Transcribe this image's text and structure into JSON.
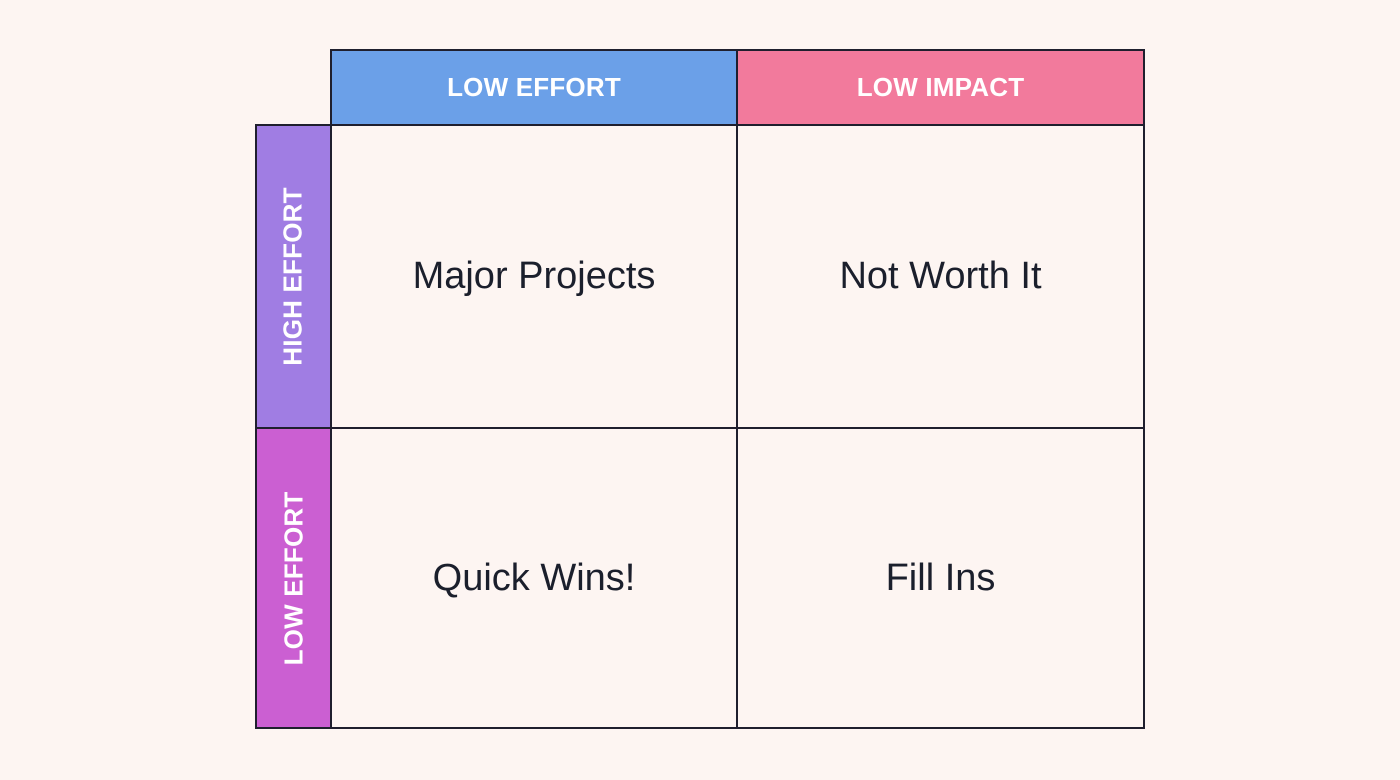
{
  "column_headers": [
    {
      "label": "LOW EFFORT",
      "color": "#6ba0e8"
    },
    {
      "label": "LOW IMPACT",
      "color": "#f27a9c"
    }
  ],
  "row_headers": [
    {
      "label": "HIGH EFFORT",
      "color_top": "#a07de3",
      "color_bottom": "#a07de3"
    },
    {
      "label": "LOW EFFORT",
      "color_top": "#cb5fd2",
      "color_bottom": "#cb5fd2"
    }
  ],
  "quadrants": [
    {
      "label": "Major Projects"
    },
    {
      "label": "Not Worth It"
    },
    {
      "label": "Quick Wins!"
    },
    {
      "label": "Fill Ins"
    }
  ],
  "border_color": "#1f1f2e",
  "background_color": "#fdf5f2"
}
